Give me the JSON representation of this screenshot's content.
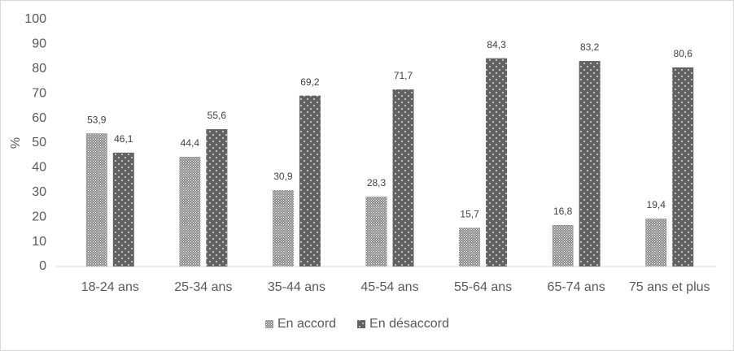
{
  "chart_data": {
    "type": "bar",
    "y_label": "%",
    "categories": [
      "18-24 ans",
      "25-34 ans",
      "35-44 ans",
      "45-54 ans",
      "55-64 ans",
      "65-74 ans",
      "75 ans et plus"
    ],
    "series": [
      {
        "name": "En accord",
        "color": "#8c8c8c",
        "pattern": "dense-dots",
        "values": [
          53.9,
          44.4,
          30.9,
          28.3,
          15.7,
          16.8,
          19.4
        ],
        "value_labels": [
          "53,9",
          "44,4",
          "30,9",
          "28,3",
          "15,7",
          "16,8",
          "19,4"
        ]
      },
      {
        "name": "En désaccord",
        "color": "#636363",
        "pattern": "sparse-dots",
        "values": [
          46.1,
          55.6,
          69.2,
          71.7,
          84.3,
          83.2,
          80.6
        ],
        "value_labels": [
          "46,1",
          "55,6",
          "69,2",
          "71,7",
          "84,3",
          "83,2",
          "80,6"
        ]
      }
    ],
    "ylim": [
      0,
      100
    ],
    "yticks": [
      0,
      10,
      20,
      30,
      40,
      50,
      60,
      70,
      80,
      90,
      100
    ],
    "grid": false,
    "legend": "bottom"
  }
}
